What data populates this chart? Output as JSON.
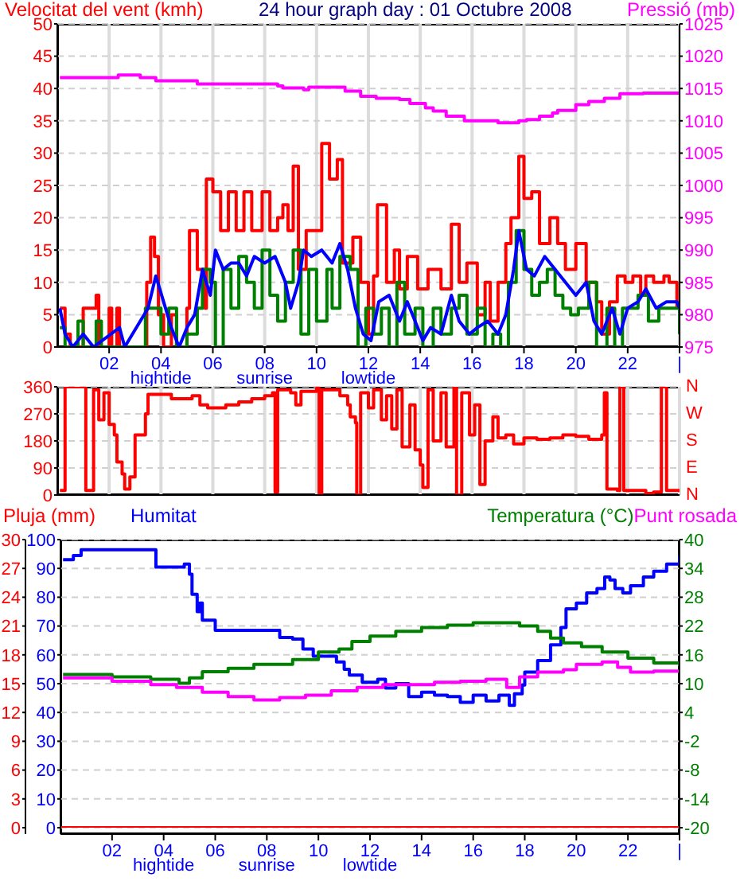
{
  "chart_data": [
    {
      "type": "step",
      "title": "24 hour graph day : 01 Octubre 2008",
      "ylabel": "Velocitat del vent (kmh)",
      "y2label": "Pressió (mb)",
      "xlim": [
        0,
        24
      ],
      "xticks": [
        {
          "value": 2,
          "label": "02"
        },
        {
          "value": 4,
          "label": "04"
        },
        {
          "value": 6,
          "label": "06"
        },
        {
          "value": 8,
          "label": "08"
        },
        {
          "value": 10,
          "label": "10"
        },
        {
          "value": 12,
          "label": "12"
        },
        {
          "value": 14,
          "label": "14"
        },
        {
          "value": 16,
          "label": "16"
        },
        {
          "value": 18,
          "label": "18"
        },
        {
          "value": 20,
          "label": "20"
        },
        {
          "value": 22,
          "label": "22"
        },
        {
          "value": 24,
          "label": "|"
        }
      ],
      "ylim": [
        0,
        50
      ],
      "yticks": [
        0,
        5,
        10,
        15,
        20,
        25,
        30,
        35,
        40,
        45,
        50
      ],
      "y2lim": [
        975,
        1025
      ],
      "y2ticks": [
        975,
        980,
        985,
        990,
        995,
        1000,
        1005,
        1010,
        1015,
        1020,
        1025
      ],
      "grid": true,
      "annotations": [
        "hightide",
        "sunrise",
        "lowtide"
      ],
      "series": [
        {
          "color": "#ff0000",
          "x": [
            0.1,
            0.3,
            0.5,
            1.0,
            1.4,
            1.5,
            1.6,
            1.7,
            2.0,
            2.1,
            2.3,
            2.4,
            3.4,
            3.45,
            3.6,
            3.75,
            3.9,
            4.1,
            4.4,
            4.6,
            5.0,
            5.1,
            5.4,
            5.7,
            5.75,
            6.0,
            6.3,
            6.6,
            6.9,
            7.2,
            7.5,
            7.9,
            8.2,
            8.5,
            8.7,
            8.9,
            9.1,
            9.3,
            9.6,
            10.2,
            10.5,
            10.8,
            11.0,
            11.4,
            11.7,
            12.0,
            12.2,
            12.35,
            12.7,
            13.0,
            13.2,
            13.5,
            13.9,
            14.3,
            14.8,
            15.2,
            15.5,
            15.8,
            16.2,
            16.5,
            16.7,
            17.0,
            17.3,
            17.5,
            17.8,
            18.0,
            18.3,
            18.6,
            19.0,
            19.3,
            19.6,
            20.0,
            20.4,
            20.8,
            21.0,
            21.3,
            21.6,
            21.9,
            22.2,
            22.5,
            22.7,
            23.0,
            23.4,
            23.6,
            23.9
          ],
          "values": [
            6,
            2,
            0,
            6,
            6,
            8,
            0,
            0,
            6,
            0,
            6,
            0,
            0,
            10,
            17,
            14,
            5,
            0,
            5,
            0,
            6,
            18,
            12,
            6,
            26,
            24,
            18,
            24,
            18,
            24,
            18,
            24,
            18,
            20,
            22,
            18,
            28,
            12,
            18,
            31.5,
            26,
            29,
            13,
            17,
            10,
            2,
            11,
            22,
            10,
            15,
            9,
            14,
            9,
            12,
            9,
            19,
            10,
            13,
            5,
            10,
            4,
            10,
            16,
            20,
            29.5,
            23,
            24,
            16,
            20,
            16,
            12,
            16,
            10,
            7,
            2,
            7,
            11,
            10,
            11,
            8,
            11,
            10,
            11,
            10,
            6
          ]
        },
        {
          "color": "#008000",
          "x": [
            0.1,
            0.3,
            0.8,
            1.0,
            1.5,
            1.7,
            3.4,
            3.7,
            4.0,
            4.3,
            4.6,
            5.0,
            5.4,
            5.6,
            5.9,
            6.1,
            6.4,
            6.7,
            7.0,
            7.3,
            7.6,
            7.9,
            8.2,
            8.5,
            8.8,
            9.1,
            9.4,
            9.7,
            10.0,
            10.4,
            10.6,
            10.9,
            11.3,
            11.6,
            11.9,
            12.2,
            12.5,
            12.8,
            13.1,
            13.4,
            13.8,
            14.1,
            14.5,
            14.8,
            15.2,
            15.5,
            15.8,
            16.2,
            16.5,
            16.8,
            17.1,
            17.4,
            17.7,
            18.0,
            18.3,
            18.6,
            18.9,
            19.2,
            19.5,
            19.8,
            20.1,
            20.5,
            20.8,
            21.2,
            21.5,
            21.8,
            22.1,
            22.4,
            22.8,
            23.2,
            23.6,
            24
          ],
          "values": [
            3,
            0,
            4,
            0,
            4,
            0,
            6,
            6,
            2,
            6,
            0,
            2,
            6,
            12,
            10,
            0,
            12,
            6,
            14,
            10,
            6,
            15,
            8,
            4,
            10,
            15,
            2,
            12,
            4,
            12,
            6,
            14,
            12,
            0,
            6,
            2,
            6,
            0,
            10,
            2,
            6,
            0,
            6,
            2,
            6,
            8,
            2,
            6,
            0,
            2,
            0,
            10,
            18,
            12,
            8,
            10,
            12,
            8,
            6,
            5,
            6,
            10,
            0,
            6,
            0,
            6,
            6,
            8,
            4,
            6,
            6,
            2
          ]
        },
        {
          "type": "line",
          "color": "#0000ff",
          "x": [
            0.1,
            0.3,
            0.6,
            1.0,
            1.4,
            2.4,
            2.6,
            3.5,
            3.8,
            4.1,
            4.4,
            4.7,
            5.0,
            5.3,
            5.6,
            5.9,
            6.1,
            6.4,
            6.7,
            7.0,
            7.3,
            7.6,
            8.0,
            8.4,
            8.8,
            9.0,
            9.3,
            9.5,
            9.8,
            10.2,
            10.6,
            10.9,
            11.2,
            11.5,
            11.8,
            12.1,
            12.4,
            12.8,
            13.2,
            13.5,
            13.8,
            14.1,
            14.4,
            14.8,
            15.2,
            15.5,
            15.9,
            16.2,
            16.6,
            17.0,
            17.3,
            17.6,
            17.8,
            18.1,
            18.4,
            18.8,
            19.2,
            19.6,
            20.0,
            20.4,
            20.7,
            21.0,
            21.4,
            21.7,
            22.0,
            22.4,
            22.7,
            23.1,
            23.5,
            23.9,
            24
          ],
          "values": [
            6,
            2,
            0,
            2,
            0,
            3,
            0,
            6,
            11,
            7,
            3,
            0,
            3,
            5,
            12,
            8,
            15,
            12,
            13,
            13,
            11,
            14,
            13,
            14,
            10,
            6,
            10,
            15,
            14,
            15,
            13,
            16,
            12,
            6,
            2,
            1,
            7,
            8,
            4,
            7,
            4,
            1,
            3,
            2,
            8,
            4,
            2,
            3,
            4,
            2,
            5,
            12,
            18,
            12,
            11,
            14,
            12,
            10,
            8,
            10,
            4,
            2,
            6,
            2,
            6,
            7,
            9,
            6,
            7,
            7,
            6
          ]
        },
        {
          "color": "#ff00ff",
          "axis": "y2",
          "x": [
            0.1,
            2.35,
            3.2,
            3.8,
            5.4,
            8.5,
            8.7,
            9.5,
            9.7,
            11.1,
            11.7,
            12.3,
            13.2,
            13.6,
            14.2,
            14.5,
            15,
            15.7,
            17,
            17.8,
            18.1,
            18.6,
            19.1,
            19.3,
            20,
            20.5,
            21.1,
            21.7,
            22.6,
            24
          ],
          "values": [
            1016.7,
            1017.1,
            1016.7,
            1016.2,
            1015.7,
            1015.4,
            1015.1,
            1014.8,
            1015.2,
            1014.6,
            1013.8,
            1013.5,
            1013.3,
            1012.7,
            1012,
            1011.5,
            1010.7,
            1010,
            1009.7,
            1010,
            1010.2,
            1010.7,
            1011.2,
            1011.6,
            1012.5,
            1013,
            1013.5,
            1014.2,
            1014.3,
            1014.1
          ]
        }
      ]
    },
    {
      "type": "step",
      "xlim": [
        0,
        24
      ],
      "xticks": [
        2,
        4,
        6,
        8,
        10,
        12,
        14,
        16,
        18,
        20,
        22,
        24
      ],
      "tick_labels": "y",
      "ylim": [
        0,
        360
      ],
      "yticks": [
        0,
        90,
        180,
        270,
        360
      ],
      "annotations": [
        "N",
        "E",
        "S",
        "W",
        "N"
      ],
      "grid": true,
      "series": [
        {
          "color": "#ff0000",
          "x": [
            0.1,
            0.3,
            1.1,
            1.4,
            1.6,
            1.8,
            2.0,
            2.2,
            2.3,
            2.5,
            2.6,
            2.8,
            3.0,
            3.4,
            3.5,
            4.4,
            5.2,
            5.5,
            5.8,
            6.5,
            7.0,
            7.5,
            8.0,
            8.3,
            8.4,
            8.5,
            9.0,
            9.2,
            9.4,
            10.0,
            10.1,
            10.2,
            10.9,
            11.2,
            11.3,
            11.5,
            11.55,
            11.7,
            12.0,
            12.2,
            12.5,
            12.7,
            12.9,
            13.1,
            13.3,
            13.6,
            13.8,
            14.0,
            14.1,
            14.3,
            14.5,
            14.8,
            15.0,
            15.3,
            15.4,
            15.6,
            15.9,
            16.1,
            16.3,
            16.5,
            16.8,
            17.0,
            17.3,
            17.6,
            18.0,
            18.5,
            19.0,
            19.5,
            20.0,
            20.5,
            21.0,
            21.1,
            21.2,
            21.6,
            21.7,
            21.85,
            22.5,
            22.7,
            23.0,
            23.3,
            23.5,
            24
          ],
          "values": [
            15,
            360,
            15,
            350,
            250,
            340,
            235,
            200,
            110,
            70,
            20,
            60,
            200,
            270,
            335,
            320,
            330,
            300,
            290,
            300,
            310,
            320,
            330,
            340,
            10,
            350,
            340,
            300,
            345,
            355,
            0,
            350,
            330,
            300,
            260,
            240,
            0,
            340,
            290,
            350,
            250,
            330,
            220,
            350,
            160,
            300,
            150,
            100,
            25,
            350,
            180,
            340,
            160,
            360,
            0,
            340,
            200,
            300,
            35,
            180,
            260,
            190,
            200,
            170,
            190,
            185,
            190,
            200,
            195,
            185,
            200,
            340,
            20,
            15,
            360,
            15,
            15,
            5,
            10,
            360,
            15,
            10
          ]
        }
      ]
    },
    {
      "type": "step",
      "xlim": [
        0,
        24
      ],
      "xticks": [
        {
          "value": 2,
          "label": "02"
        },
        {
          "value": 4,
          "label": "04"
        },
        {
          "value": 6,
          "label": "06"
        },
        {
          "value": 8,
          "label": "08"
        },
        {
          "value": 10,
          "label": "10"
        },
        {
          "value": 12,
          "label": "12"
        },
        {
          "value": 14,
          "label": "14"
        },
        {
          "value": 16,
          "label": "16"
        },
        {
          "value": 18,
          "label": "18"
        },
        {
          "value": 20,
          "label": "20"
        },
        {
          "value": 22,
          "label": "22"
        },
        {
          "value": 24,
          "label": "|"
        }
      ],
      "ylim": [
        0,
        100
      ],
      "yticks": [
        0,
        10,
        20,
        30,
        40,
        50,
        60,
        70,
        80,
        90,
        100
      ],
      "y2lim": [
        0,
        30
      ],
      "y2ticks": [
        0,
        3,
        6,
        9,
        12,
        15,
        18,
        21,
        24,
        27,
        30
      ],
      "y3lim": [
        -20,
        40
      ],
      "y3ticks": [
        -20,
        -14,
        -8,
        -2,
        4,
        10,
        16,
        22,
        28,
        34,
        40
      ],
      "grid": "y",
      "legend": "top",
      "annotations": [
        "hightide",
        "sunrise",
        "lowtide"
      ],
      "series": [
        {
          "name": "Pluja (mm)",
          "color": "#ff0000",
          "axis": "y2",
          "x": [
            0,
            24
          ],
          "values": [
            0,
            0
          ]
        },
        {
          "name": "Humitat",
          "color": "#0000ff",
          "x": [
            0.1,
            0.5,
            0.8,
            3.6,
            3.7,
            4.5,
            4.8,
            5.0,
            5.1,
            5.3,
            5.4,
            5.5,
            6.0,
            8.0,
            8.5,
            9.0,
            9.4,
            9.8,
            10.3,
            10.7,
            11.0,
            11.2,
            11.7,
            12.3,
            12.6,
            13.0,
            13.5,
            14.0,
            14.5,
            15.0,
            15.5,
            16.0,
            16.5,
            17.0,
            17.4,
            17.6,
            17.9,
            18.0,
            18.5,
            19.0,
            19.4,
            19.6,
            20.0,
            20.4,
            20.8,
            21.1,
            21.3,
            21.5,
            21.8,
            22.1,
            22.6,
            23.0,
            23.5,
            24.0
          ],
          "values": [
            93,
            94.5,
            96.5,
            96.5,
            90.5,
            90.5,
            91.5,
            88,
            81,
            75,
            78,
            72,
            68.5,
            68.5,
            66,
            65.5,
            62,
            59.5,
            59.5,
            57.5,
            55,
            53,
            50.5,
            51.5,
            48.5,
            50,
            45.5,
            47,
            46,
            45.5,
            43.5,
            46,
            44,
            46,
            42.5,
            46.5,
            49.5,
            54,
            58,
            63.5,
            69.5,
            76,
            78,
            81.5,
            83,
            87,
            86,
            83,
            81.5,
            84,
            87,
            89,
            91.5,
            94.5
          ]
        },
        {
          "name": "Temperatura (°C)",
          "color": "#008000",
          "axis": "y3",
          "x": [
            0.1,
            2.0,
            3.5,
            4.6,
            5.0,
            5.5,
            6.5,
            7.5,
            9.0,
            10.0,
            10.8,
            11.3,
            12.0,
            13.0,
            14.0,
            15.0,
            16.0,
            17.0,
            17.8,
            18.5,
            19.0,
            19.5,
            20.2,
            21.0,
            22.0,
            23.0,
            24.0
          ],
          "values": [
            11.9,
            11.4,
            10.9,
            10.1,
            11.2,
            12.5,
            13.2,
            14,
            15,
            16.6,
            17.2,
            18.8,
            19.9,
            20.9,
            21.7,
            22.2,
            22.7,
            22.7,
            22,
            20.9,
            19.5,
            18.5,
            17.7,
            16.6,
            15.3,
            14.3,
            13.6
          ]
        },
        {
          "name": "Punt rosada",
          "color": "#ff00ff",
          "axis": "y3",
          "x": [
            0.1,
            2.0,
            3.5,
            4.5,
            5.5,
            6.5,
            7.5,
            8.5,
            9.5,
            10.5,
            11.5,
            12.5,
            13.5,
            14.5,
            15.5,
            16.5,
            17.3,
            17.8,
            18.5,
            19.5,
            20.0,
            21.0,
            21.6,
            22.1,
            23.0,
            24.0
          ],
          "values": [
            11.2,
            10.5,
            9.8,
            9.2,
            8.2,
            7.3,
            6.6,
            7.1,
            7.6,
            8.5,
            9.2,
            9.8,
            9.8,
            10.3,
            10.5,
            10.9,
            9.2,
            11.4,
            12.4,
            12.9,
            14,
            14.5,
            13.4,
            12.4,
            12.6,
            12.9
          ]
        }
      ]
    }
  ]
}
